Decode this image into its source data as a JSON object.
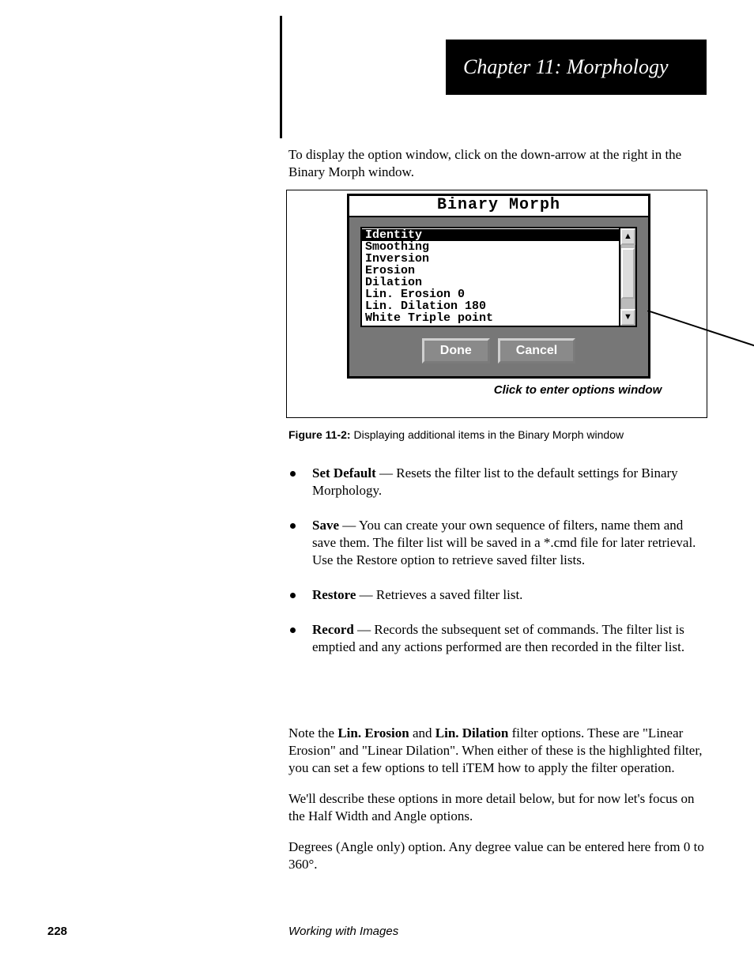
{
  "chapter_bar": "Chapter 11: Morphology",
  "intro": "To display the option window, click on the down-arrow at the right in the Binary Morph window.",
  "dialog": {
    "title": "Binary Morph",
    "items": [
      "Identity",
      "Smoothing",
      "Inversion",
      "Erosion",
      "Dilation",
      "Lin. Erosion 0",
      "Lin. Dilation 180",
      "White Triple point"
    ],
    "selected_index": 0,
    "done": "Done",
    "cancel": "Cancel"
  },
  "fig_note": "Click to enter options window",
  "caption_num": "Figure 11-2:",
  "caption_txt": " Displaying additional items in the Binary Morph window",
  "bullets": [
    {
      "k": "Set Default",
      "t": " — Resets the filter list to the default settings for Binary Morphology."
    },
    {
      "k": "Save",
      "t": " — You can create your own sequence of filters, name them and save them. The filter list will be saved in a *.cmd file for later retrieval. Use the Restore option to retrieve saved filter lists."
    },
    {
      "k": "Restore",
      "t": " — Retrieves a saved filter list."
    },
    {
      "k": "Record",
      "t": " — Records the subsequent set of commands. The filter list is emptied and any actions performed are then recorded in the filter list."
    }
  ],
  "after": {
    "p1_a": "Note the ",
    "p1_k": "Lin. Erosion",
    "p1_b": " and ",
    "p1_k2": "Lin. Dilation",
    "p1_c": " filter options. These are \"Linear Erosion\" and \"Linear Dilation\". When either of these is the highlighted filter, you can set a few options to tell iTEM how to apply the filter operation.",
    "p2": "We'll describe these options in more detail below, but for now let's focus on the Half Width and Angle options.",
    "p3": "Degrees (Angle only) option. Any degree value can be entered here from 0 to 360°."
  },
  "footer": {
    "page": "228",
    "title": "Working with Images"
  }
}
